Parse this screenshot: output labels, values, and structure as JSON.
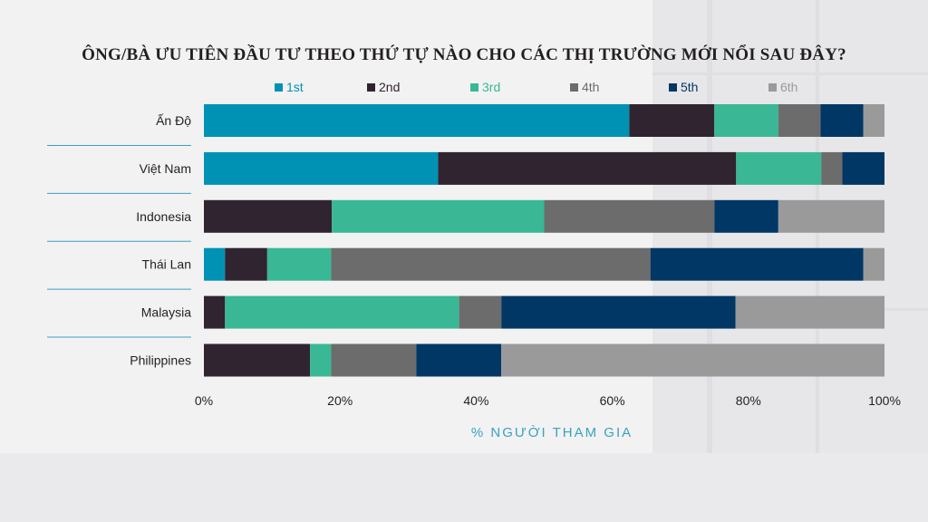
{
  "colors": {
    "1st": "#0092b4",
    "2nd": "#2f2430",
    "3rd": "#3ab795",
    "4th": "#6c6c6c",
    "5th": "#003764",
    "6th": "#9a9a9a",
    "grid": "#3aa2c0",
    "axis_title": "#3aa2c0",
    "tick": "#231f20"
  },
  "chart_data": {
    "type": "bar",
    "orientation": "horizontal",
    "stacked": true,
    "title": "ÔNG/BÀ ƯU TIÊN ĐẦU TƯ THEO THỨ TỰ NÀO CHO CÁC THỊ TRƯỜNG MỚI NỔI SAU ĐÂY?",
    "xlabel": "% NGƯỜI THAM GIA",
    "ylabel": "",
    "xlim": [
      0,
      100
    ],
    "xticks": [
      "0%",
      "20%",
      "40%",
      "60%",
      "80%",
      "100%"
    ],
    "legend_position": "top",
    "categories": [
      "Ấn Độ",
      "Việt Nam",
      "Indonesia",
      "Thái Lan",
      "Malaysia",
      "Philippines"
    ],
    "series": [
      {
        "name": "1st",
        "values": [
          62.5,
          34.4,
          0,
          3.1,
          0,
          0
        ]
      },
      {
        "name": "2nd",
        "values": [
          12.5,
          43.8,
          18.8,
          6.2,
          3.1,
          15.6
        ]
      },
      {
        "name": "3rd",
        "values": [
          9.4,
          12.5,
          31.2,
          9.4,
          34.4,
          3.1
        ]
      },
      {
        "name": "4th",
        "values": [
          6.2,
          3.1,
          25.0,
          46.9,
          6.2,
          12.5
        ]
      },
      {
        "name": "5th",
        "values": [
          6.3,
          6.2,
          9.4,
          31.3,
          34.4,
          12.5
        ]
      },
      {
        "name": "6th",
        "values": [
          3.1,
          0,
          15.6,
          3.1,
          21.9,
          56.3
        ]
      }
    ]
  }
}
